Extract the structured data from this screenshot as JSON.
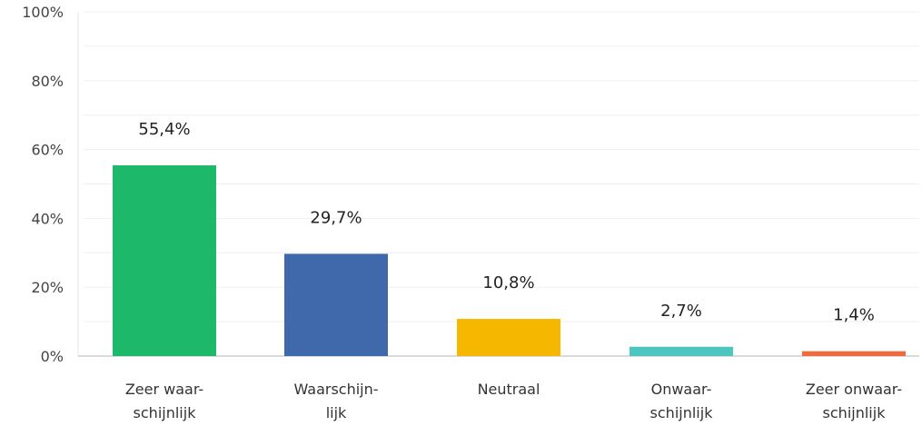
{
  "chart_data": {
    "type": "bar",
    "categories": [
      [
        "Zeer waar-",
        "schijnlijk"
      ],
      [
        "Waarschijn-",
        "lijk"
      ],
      [
        "Neutraal"
      ],
      [
        "Onwaar-",
        "schijnlijk"
      ],
      [
        "Zeer onwaar-",
        "schijnlijk"
      ]
    ],
    "values": [
      55.4,
      29.7,
      10.8,
      2.7,
      1.4
    ],
    "data_labels": [
      "55,4%",
      "29,7%",
      "10,8%",
      "2,7%",
      "1,4%"
    ],
    "colors": [
      "#1db86a",
      "#3f69aa",
      "#f5b700",
      "#4ec6c0",
      "#f06a3b"
    ],
    "ylim": [
      0,
      100
    ],
    "yticks": [
      0,
      20,
      40,
      60,
      80,
      100
    ],
    "ytick_labels": [
      "0%",
      "20%",
      "40%",
      "60%",
      "80%",
      "100%"
    ],
    "grid": true,
    "title": "",
    "xlabel": "",
    "ylabel": ""
  }
}
